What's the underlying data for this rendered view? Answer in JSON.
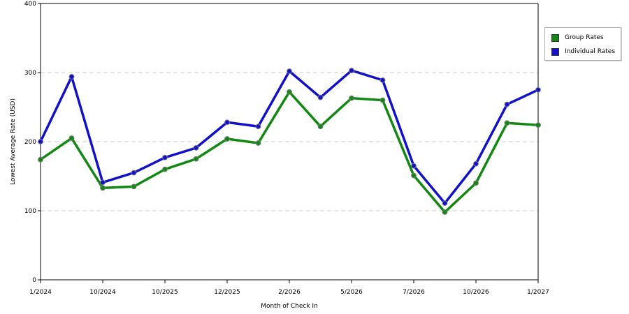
{
  "chart_data": {
    "type": "line",
    "xlabel": "Month of Check In",
    "ylabel": "Lowest Average Rate (USD)",
    "ylim": [
      0,
      400
    ],
    "yticks": [
      0,
      100,
      200,
      300,
      400
    ],
    "grid": true,
    "legend_position": "right",
    "x_tick_labels": [
      "1/2024",
      "10/2024",
      "10/2025",
      "12/2025",
      "2/2026",
      "5/2026",
      "7/2026",
      "10/2026",
      "1/2027"
    ],
    "series": [
      {
        "name": "Group Rates",
        "color": "#118811",
        "values": [
          174,
          205,
          133,
          135,
          160,
          175,
          204,
          198,
          272,
          222,
          263,
          260,
          151,
          98,
          140,
          227,
          224
        ]
      },
      {
        "name": "Individual Rates",
        "color": "#1111cc",
        "values": [
          200,
          294,
          141,
          155,
          177,
          191,
          228,
          222,
          302,
          264,
          303,
          289,
          165,
          111,
          168,
          254,
          275
        ]
      }
    ]
  }
}
